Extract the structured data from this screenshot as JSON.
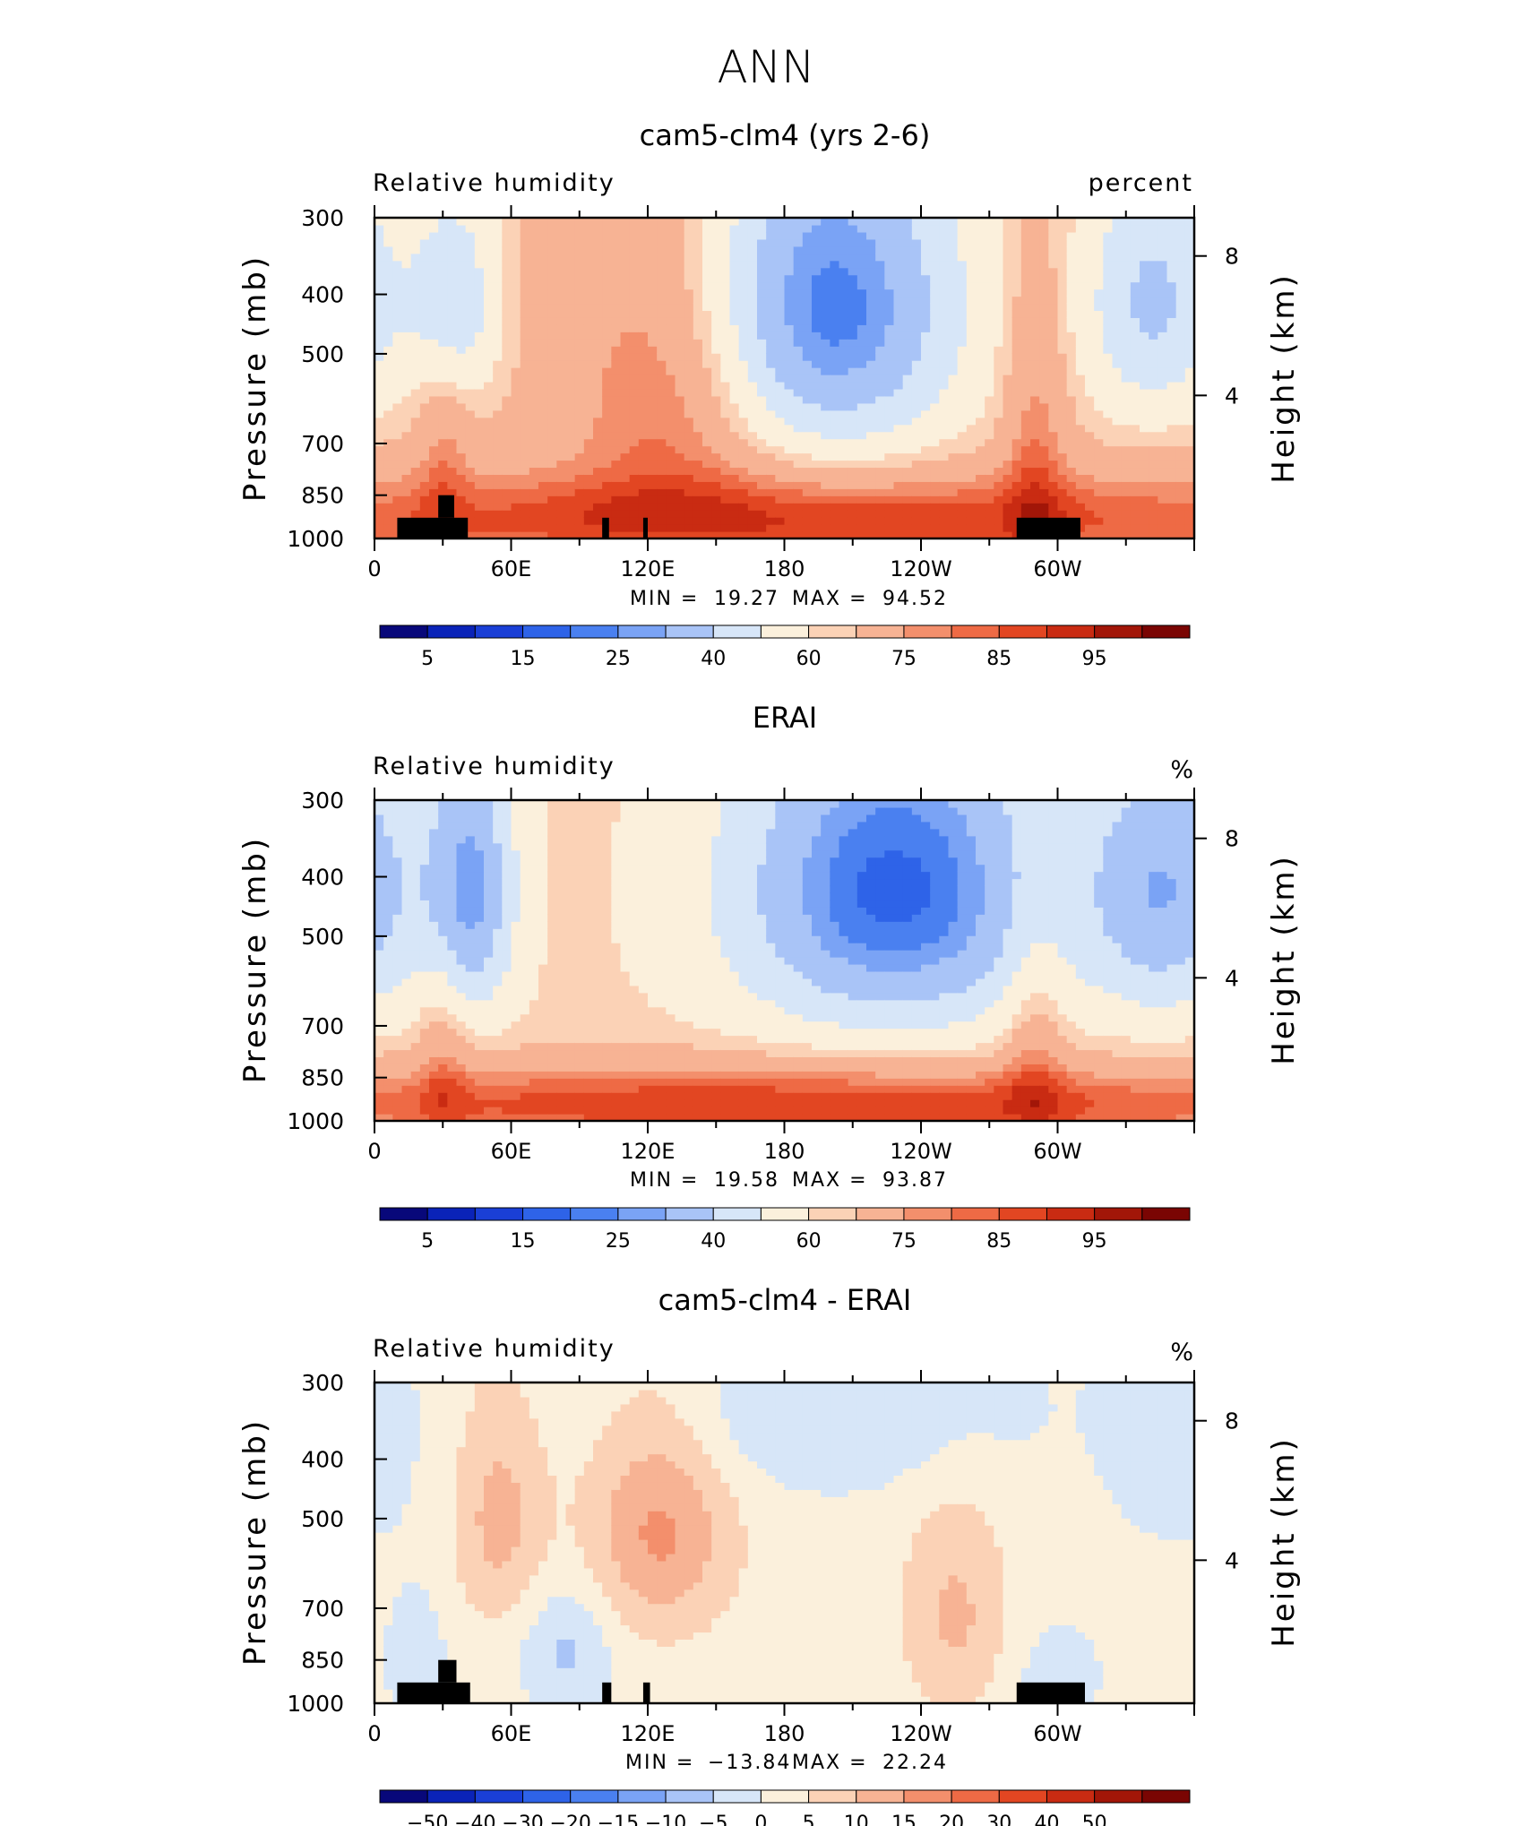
{
  "figure_title": "ANN",
  "colors": {
    "rh_scale": [
      "#08087a",
      "#0a23b8",
      "#1a3fd6",
      "#2e63e8",
      "#4a80f0",
      "#7aa3f5",
      "#a9c4f7",
      "#d7e6f8",
      "#fbf0dc",
      "#fbd2b6",
      "#f7b394",
      "#f38f6c",
      "#ee6a45",
      "#e24622",
      "#c92b12",
      "#a21608",
      "#7a0503"
    ],
    "diff_scale": [
      "#08087a",
      "#0a23b8",
      "#1a3fd6",
      "#2e63e8",
      "#4a80f0",
      "#7aa3f5",
      "#a9c4f7",
      "#d7e6f8",
      "#fbf0dc",
      "#fbd2b6",
      "#f7b394",
      "#f38f6c",
      "#ee6a45",
      "#e24622",
      "#c92b12",
      "#a21608",
      "#7a0503"
    ],
    "topography": "#000000"
  },
  "chart_data": [
    {
      "type": "heatmap",
      "title": "cam5-clm4 (yrs 2-6)",
      "left_label": "Relative humidity",
      "right_label": "percent",
      "xlabel": "",
      "ylabel": "Pressure (mb)",
      "ylabel_right": "Height (km)",
      "x_ticks": [
        "0",
        "60E",
        "120E",
        "180",
        "120W",
        "60W"
      ],
      "y_ticks": [
        "300",
        "400",
        "500",
        "700",
        "850",
        "1000"
      ],
      "height_ticks": [
        "8",
        "4"
      ],
      "stats": {
        "min_label": "MIN =",
        "min": "19.27",
        "max_label": "MAX =",
        "max": "94.52"
      },
      "colorbar_labels": [
        "5",
        "15",
        "25",
        "40",
        "60",
        "75",
        "85",
        "95"
      ],
      "xlim": [
        0,
        360
      ],
      "ylim": [
        1000,
        300
      ],
      "fields": {
        "base": 66,
        "features": [
          {
            "lon": 200,
            "p": 420,
            "amp": -44,
            "dlon": 42,
            "dp": 200
          },
          {
            "lon": 342,
            "p": 410,
            "amp": -28,
            "dlon": 22,
            "dp": 150
          },
          {
            "lon": 35,
            "p": 410,
            "amp": -24,
            "dlon": 14,
            "dp": 120
          },
          {
            "lon": 130,
            "p": 560,
            "amp": 18,
            "dlon": 30,
            "dp": 240
          },
          {
            "lon": 180,
            "p": 930,
            "amp": 24,
            "dlon": 200,
            "dp": 110
          },
          {
            "lon": 290,
            "p": 700,
            "amp": 14,
            "dlon": 10,
            "dp": 300
          },
          {
            "lon": 30,
            "p": 720,
            "amp": 10,
            "dlon": 8,
            "dp": 200
          }
        ],
        "mask": [
          {
            "lon0": 10,
            "lon1": 41,
            "p0": 1000,
            "p1": 925
          },
          {
            "lon0": 28,
            "lon1": 35,
            "p0": 925,
            "p1": 850
          },
          {
            "lon0": 100,
            "lon1": 103,
            "p0": 1000,
            "p1": 925
          },
          {
            "lon0": 118,
            "lon1": 120,
            "p0": 1000,
            "p1": 925
          },
          {
            "lon0": 282,
            "lon1": 310,
            "p0": 1000,
            "p1": 925
          }
        ]
      }
    },
    {
      "type": "heatmap",
      "title": "ERAI",
      "left_label": "Relative humidity",
      "right_label": "%",
      "xlabel": "",
      "ylabel": "Pressure (mb)",
      "ylabel_right": "Height (km)",
      "x_ticks": [
        "0",
        "60E",
        "120E",
        "180",
        "120W",
        "60W"
      ],
      "y_ticks": [
        "300",
        "400",
        "500",
        "700",
        "850",
        "1000"
      ],
      "height_ticks": [
        "8",
        "4"
      ],
      "stats": {
        "min_label": "MIN =",
        "min": "19.58",
        "max_label": "MAX =",
        "max": "93.87"
      },
      "colorbar_labels": [
        "5",
        "15",
        "25",
        "40",
        "60",
        "75",
        "85",
        "95"
      ],
      "xlim": [
        0,
        360
      ],
      "ylim": [
        1000,
        300
      ],
      "fields": {
        "base": 62,
        "features": [
          {
            "lon": 228,
            "p": 420,
            "amp": -44,
            "dlon": 50,
            "dp": 190
          },
          {
            "lon": 348,
            "p": 420,
            "amp": -30,
            "dlon": 24,
            "dp": 160
          },
          {
            "lon": 42,
            "p": 420,
            "amp": -34,
            "dlon": 14,
            "dp": 160
          },
          {
            "lon": 180,
            "p": 940,
            "amp": 28,
            "dlon": 210,
            "dp": 100
          },
          {
            "lon": 290,
            "p": 760,
            "amp": 12,
            "dlon": 10,
            "dp": 250
          },
          {
            "lon": 30,
            "p": 760,
            "amp": 10,
            "dlon": 8,
            "dp": 200
          }
        ],
        "mask": []
      }
    },
    {
      "type": "heatmap",
      "title": "cam5-clm4 - ERAI",
      "left_label": "Relative humidity",
      "right_label": "%",
      "xlabel": "",
      "ylabel": "Pressure (mb)",
      "ylabel_right": "Height (km)",
      "x_ticks": [
        "0",
        "60E",
        "120E",
        "180",
        "120W",
        "60W"
      ],
      "y_ticks": [
        "300",
        "400",
        "500",
        "700",
        "850",
        "1000"
      ],
      "height_ticks": [
        "8",
        "4"
      ],
      "stats": {
        "min_label": "MIN =",
        "min": "−13.84",
        "max_label": "MAX =",
        "max": "22.24"
      },
      "colorbar_labels": [
        "−50",
        "−40",
        "−30",
        "−20",
        "−15",
        "−10",
        "−5",
        "0",
        "5",
        "10",
        "15",
        "20",
        "30",
        "40",
        "50"
      ],
      "xlim": [
        0,
        360
      ],
      "ylim": [
        1000,
        300
      ],
      "fields": {
        "base": 2,
        "features": [
          {
            "lon": 125,
            "p": 520,
            "amp": 14,
            "dlon": 22,
            "dp": 160
          },
          {
            "lon": 55,
            "p": 500,
            "amp": 10,
            "dlon": 14,
            "dp": 150
          },
          {
            "lon": 255,
            "p": 720,
            "amp": 9,
            "dlon": 16,
            "dp": 200
          },
          {
            "lon": 85,
            "p": 820,
            "amp": -8,
            "dlon": 14,
            "dp": 140
          },
          {
            "lon": 200,
            "p": 330,
            "amp": -7,
            "dlon": 60,
            "dp": 80
          },
          {
            "lon": 350,
            "p": 360,
            "amp": -6,
            "dlon": 20,
            "dp": 120
          },
          {
            "lon": 18,
            "p": 850,
            "amp": -5,
            "dlon": 10,
            "dp": 160
          },
          {
            "lon": 300,
            "p": 900,
            "amp": -5,
            "dlon": 14,
            "dp": 120
          }
        ],
        "mask": [
          {
            "lon0": 10,
            "lon1": 42,
            "p0": 1000,
            "p1": 925
          },
          {
            "lon0": 28,
            "lon1": 36,
            "p0": 925,
            "p1": 850
          },
          {
            "lon0": 100,
            "lon1": 104,
            "p0": 1000,
            "p1": 925
          },
          {
            "lon0": 118,
            "lon1": 121,
            "p0": 1000,
            "p1": 925
          },
          {
            "lon0": 282,
            "lon1": 312,
            "p0": 1000,
            "p1": 925
          }
        ]
      }
    }
  ]
}
